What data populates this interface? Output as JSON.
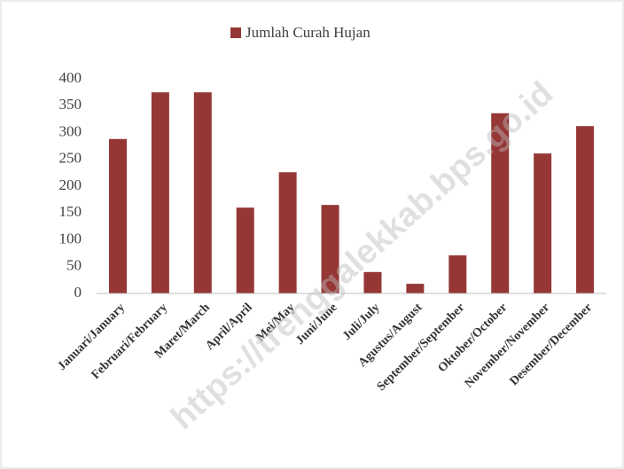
{
  "chart_data": {
    "type": "bar",
    "legend": "Jumlah Curah Hujan",
    "categories": [
      "Januari/January",
      "Februari/February",
      "Maret/March",
      "April/April",
      "Mei/May",
      "Juni/June",
      "Juli/July",
      "Agustus/August",
      "September/September",
      "Oktober/October",
      "November/November",
      "Desember/December"
    ],
    "values": [
      288,
      375,
      375,
      160,
      226,
      165,
      40,
      18,
      71,
      336,
      261,
      312
    ],
    "color": "#953735",
    "ylim": [
      0,
      400
    ],
    "yticks": [
      0,
      50,
      100,
      150,
      200,
      250,
      300,
      350,
      400
    ],
    "grid": false,
    "legend_position": "top",
    "watermark": "https://trenggalekkab.bps.go.id"
  }
}
